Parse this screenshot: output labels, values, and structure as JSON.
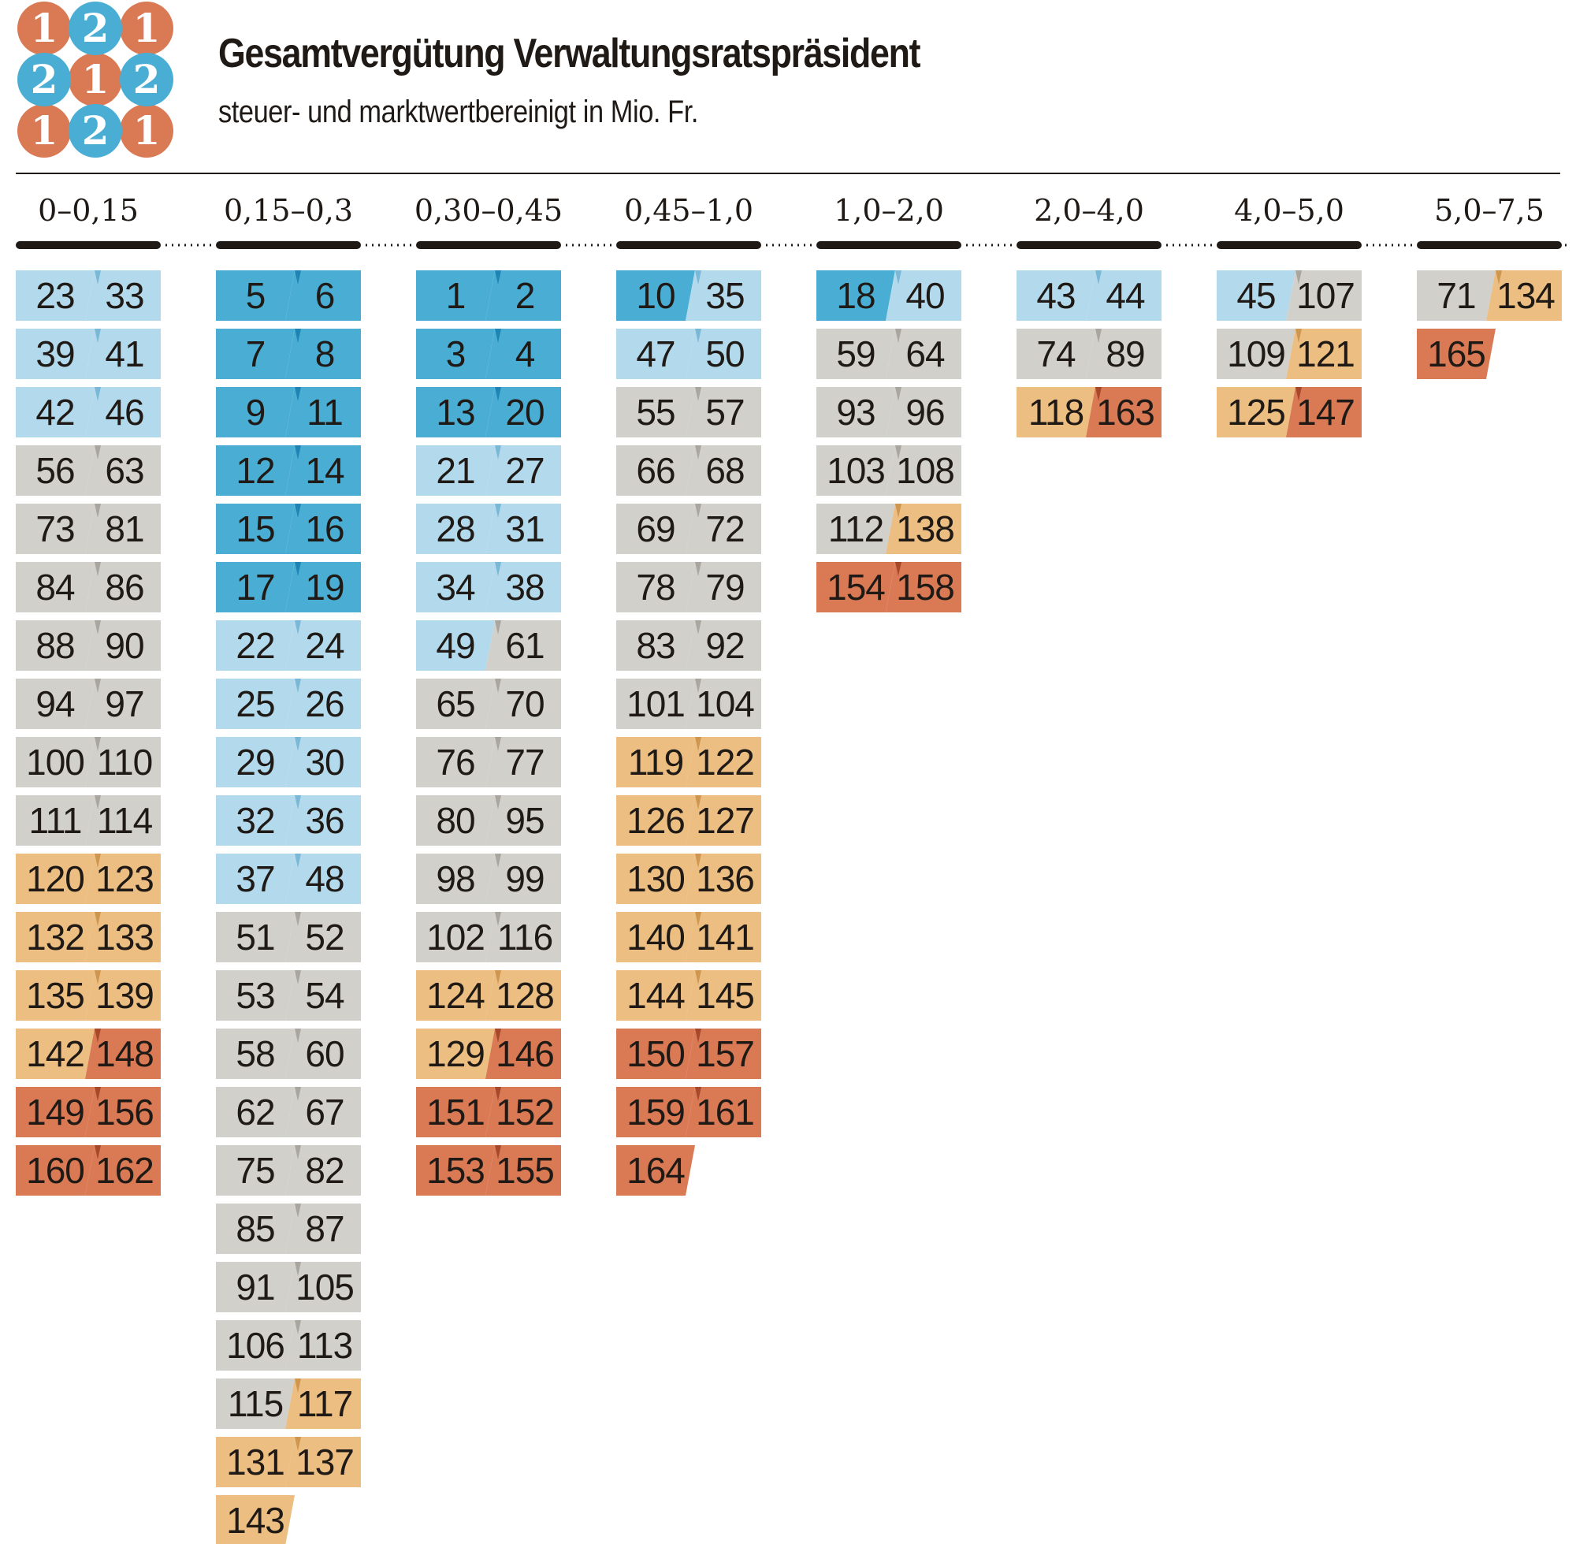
{
  "title": "Gesamtvergütung Verwaltungsratspräsident",
  "subtitle": "steuer- und marktwertbereinigt in Mio. Fr.",
  "logo": {
    "digits": [
      "1",
      "2",
      "1",
      "2",
      "1",
      "2",
      "1",
      "2",
      "1"
    ],
    "colors": {
      "1": "#d97a55",
      "2": "#4aaed4"
    }
  },
  "colors": {
    "darkblue": "#4aaed4",
    "lightblue": "#b3d9ec",
    "gray": "#d1d0cb",
    "lightorange": "#ecbe82",
    "darkorange": "#d97a55",
    "text": "#1f1a16"
  },
  "chart_data": {
    "type": "table",
    "title": "Gesamtvergütung Verwaltungsratspräsident",
    "subtitle": "steuer- und marktwertbereinigt in Mio. Fr.",
    "columns": [
      {
        "range": "0–0,15",
        "rows": [
          [
            [
              "23",
              "lightblue"
            ],
            [
              "33",
              "lightblue"
            ]
          ],
          [
            [
              "39",
              "lightblue"
            ],
            [
              "41",
              "lightblue"
            ]
          ],
          [
            [
              "42",
              "lightblue"
            ],
            [
              "46",
              "lightblue"
            ]
          ],
          [
            [
              "56",
              "gray"
            ],
            [
              "63",
              "gray"
            ]
          ],
          [
            [
              "73",
              "gray"
            ],
            [
              "81",
              "gray"
            ]
          ],
          [
            [
              "84",
              "gray"
            ],
            [
              "86",
              "gray"
            ]
          ],
          [
            [
              "88",
              "gray"
            ],
            [
              "90",
              "gray"
            ]
          ],
          [
            [
              "94",
              "gray"
            ],
            [
              "97",
              "gray"
            ]
          ],
          [
            [
              "100",
              "gray"
            ],
            [
              "110",
              "gray"
            ]
          ],
          [
            [
              "111",
              "gray"
            ],
            [
              "114",
              "gray"
            ]
          ],
          [
            [
              "120",
              "lightorange"
            ],
            [
              "123",
              "lightorange"
            ]
          ],
          [
            [
              "132",
              "lightorange"
            ],
            [
              "133",
              "lightorange"
            ]
          ],
          [
            [
              "135",
              "lightorange"
            ],
            [
              "139",
              "lightorange"
            ]
          ],
          [
            [
              "142",
              "lightorange"
            ],
            [
              "148",
              "darkorange"
            ]
          ],
          [
            [
              "149",
              "darkorange"
            ],
            [
              "156",
              "darkorange"
            ]
          ],
          [
            [
              "160",
              "darkorange"
            ],
            [
              "162",
              "darkorange"
            ]
          ]
        ]
      },
      {
        "range": "0,15–0,3",
        "rows": [
          [
            [
              "5",
              "darkblue"
            ],
            [
              "6",
              "darkblue"
            ]
          ],
          [
            [
              "7",
              "darkblue"
            ],
            [
              "8",
              "darkblue"
            ]
          ],
          [
            [
              "9",
              "darkblue"
            ],
            [
              "11",
              "darkblue"
            ]
          ],
          [
            [
              "12",
              "darkblue"
            ],
            [
              "14",
              "darkblue"
            ]
          ],
          [
            [
              "15",
              "darkblue"
            ],
            [
              "16",
              "darkblue"
            ]
          ],
          [
            [
              "17",
              "darkblue"
            ],
            [
              "19",
              "darkblue"
            ]
          ],
          [
            [
              "22",
              "lightblue"
            ],
            [
              "24",
              "lightblue"
            ]
          ],
          [
            [
              "25",
              "lightblue"
            ],
            [
              "26",
              "lightblue"
            ]
          ],
          [
            [
              "29",
              "lightblue"
            ],
            [
              "30",
              "lightblue"
            ]
          ],
          [
            [
              "32",
              "lightblue"
            ],
            [
              "36",
              "lightblue"
            ]
          ],
          [
            [
              "37",
              "lightblue"
            ],
            [
              "48",
              "lightblue"
            ]
          ],
          [
            [
              "51",
              "gray"
            ],
            [
              "52",
              "gray"
            ]
          ],
          [
            [
              "53",
              "gray"
            ],
            [
              "54",
              "gray"
            ]
          ],
          [
            [
              "58",
              "gray"
            ],
            [
              "60",
              "gray"
            ]
          ],
          [
            [
              "62",
              "gray"
            ],
            [
              "67",
              "gray"
            ]
          ],
          [
            [
              "75",
              "gray"
            ],
            [
              "82",
              "gray"
            ]
          ],
          [
            [
              "85",
              "gray"
            ],
            [
              "87",
              "gray"
            ]
          ],
          [
            [
              "91",
              "gray"
            ],
            [
              "105",
              "gray"
            ]
          ],
          [
            [
              "106",
              "gray"
            ],
            [
              "113",
              "gray"
            ]
          ],
          [
            [
              "115",
              "gray"
            ],
            [
              "117",
              "lightorange"
            ]
          ],
          [
            [
              "131",
              "lightorange"
            ],
            [
              "137",
              "lightorange"
            ]
          ],
          [
            [
              "143",
              "lightorange"
            ]
          ]
        ]
      },
      {
        "range": "0,30–0,45",
        "rows": [
          [
            [
              "1",
              "darkblue"
            ],
            [
              "2",
              "darkblue"
            ]
          ],
          [
            [
              "3",
              "darkblue"
            ],
            [
              "4",
              "darkblue"
            ]
          ],
          [
            [
              "13",
              "darkblue"
            ],
            [
              "20",
              "darkblue"
            ]
          ],
          [
            [
              "21",
              "lightblue"
            ],
            [
              "27",
              "lightblue"
            ]
          ],
          [
            [
              "28",
              "lightblue"
            ],
            [
              "31",
              "lightblue"
            ]
          ],
          [
            [
              "34",
              "lightblue"
            ],
            [
              "38",
              "lightblue"
            ]
          ],
          [
            [
              "49",
              "lightblue"
            ],
            [
              "61",
              "gray"
            ]
          ],
          [
            [
              "65",
              "gray"
            ],
            [
              "70",
              "gray"
            ]
          ],
          [
            [
              "76",
              "gray"
            ],
            [
              "77",
              "gray"
            ]
          ],
          [
            [
              "80",
              "gray"
            ],
            [
              "95",
              "gray"
            ]
          ],
          [
            [
              "98",
              "gray"
            ],
            [
              "99",
              "gray"
            ]
          ],
          [
            [
              "102",
              "gray"
            ],
            [
              "116",
              "gray"
            ]
          ],
          [
            [
              "124",
              "lightorange"
            ],
            [
              "128",
              "lightorange"
            ]
          ],
          [
            [
              "129",
              "lightorange"
            ],
            [
              "146",
              "darkorange"
            ]
          ],
          [
            [
              "151",
              "darkorange"
            ],
            [
              "152",
              "darkorange"
            ]
          ],
          [
            [
              "153",
              "darkorange"
            ],
            [
              "155",
              "darkorange"
            ]
          ]
        ]
      },
      {
        "range": "0,45–1,0",
        "rows": [
          [
            [
              "10",
              "darkblue"
            ],
            [
              "35",
              "lightblue"
            ]
          ],
          [
            [
              "47",
              "lightblue"
            ],
            [
              "50",
              "lightblue"
            ]
          ],
          [
            [
              "55",
              "gray"
            ],
            [
              "57",
              "gray"
            ]
          ],
          [
            [
              "66",
              "gray"
            ],
            [
              "68",
              "gray"
            ]
          ],
          [
            [
              "69",
              "gray"
            ],
            [
              "72",
              "gray"
            ]
          ],
          [
            [
              "78",
              "gray"
            ],
            [
              "79",
              "gray"
            ]
          ],
          [
            [
              "83",
              "gray"
            ],
            [
              "92",
              "gray"
            ]
          ],
          [
            [
              "101",
              "gray"
            ],
            [
              "104",
              "gray"
            ]
          ],
          [
            [
              "119",
              "lightorange"
            ],
            [
              "122",
              "lightorange"
            ]
          ],
          [
            [
              "126",
              "lightorange"
            ],
            [
              "127",
              "lightorange"
            ]
          ],
          [
            [
              "130",
              "lightorange"
            ],
            [
              "136",
              "lightorange"
            ]
          ],
          [
            [
              "140",
              "lightorange"
            ],
            [
              "141",
              "lightorange"
            ]
          ],
          [
            [
              "144",
              "lightorange"
            ],
            [
              "145",
              "lightorange"
            ]
          ],
          [
            [
              "150",
              "darkorange"
            ],
            [
              "157",
              "darkorange"
            ]
          ],
          [
            [
              "159",
              "darkorange"
            ],
            [
              "161",
              "darkorange"
            ]
          ],
          [
            [
              "164",
              "darkorange"
            ]
          ]
        ]
      },
      {
        "range": "1,0–2,0",
        "rows": [
          [
            [
              "18",
              "darkblue"
            ],
            [
              "40",
              "lightblue"
            ]
          ],
          [
            [
              "59",
              "gray"
            ],
            [
              "64",
              "gray"
            ]
          ],
          [
            [
              "93",
              "gray"
            ],
            [
              "96",
              "gray"
            ]
          ],
          [
            [
              "103",
              "gray"
            ],
            [
              "108",
              "gray"
            ]
          ],
          [
            [
              "112",
              "gray"
            ],
            [
              "138",
              "lightorange"
            ]
          ],
          [
            [
              "154",
              "darkorange"
            ],
            [
              "158",
              "darkorange"
            ]
          ]
        ]
      },
      {
        "range": "2,0–4,0",
        "rows": [
          [
            [
              "43",
              "lightblue"
            ],
            [
              "44",
              "lightblue"
            ]
          ],
          [
            [
              "74",
              "gray"
            ],
            [
              "89",
              "gray"
            ]
          ],
          [
            [
              "118",
              "lightorange"
            ],
            [
              "163",
              "darkorange"
            ]
          ]
        ]
      },
      {
        "range": "4,0–5,0",
        "rows": [
          [
            [
              "45",
              "lightblue"
            ],
            [
              "107",
              "gray"
            ]
          ],
          [
            [
              "109",
              "gray"
            ],
            [
              "121",
              "lightorange"
            ]
          ],
          [
            [
              "125",
              "lightorange"
            ],
            [
              "147",
              "darkorange"
            ]
          ]
        ]
      },
      {
        "range": "5,0–7,5",
        "rows": [
          [
            [
              "71",
              "gray"
            ],
            [
              "134",
              "lightorange"
            ]
          ],
          [
            [
              "165",
              "darkorange"
            ]
          ]
        ]
      }
    ]
  }
}
